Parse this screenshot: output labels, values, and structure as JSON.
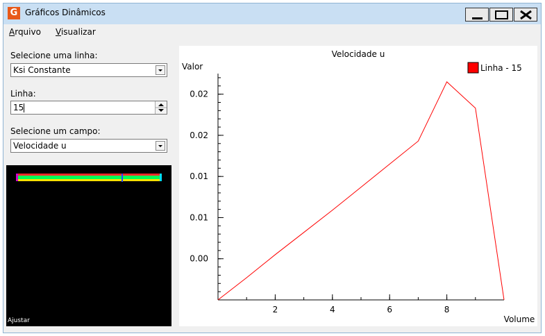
{
  "window": {
    "icon_text": "G",
    "title": "Gráficos Dinâmicos"
  },
  "menu": {
    "items": [
      {
        "label": "Arquivo",
        "mnemonic": "A",
        "rest": "rquivo"
      },
      {
        "label": "Visualizar",
        "mnemonic": "V",
        "rest": "isualizar"
      }
    ]
  },
  "controls": {
    "line_select_label": "Selecione uma linha:",
    "line_select_value": "Ksi Constante",
    "line_label": "Linha:",
    "line_value": "15",
    "field_select_label": "Selecione um campo:",
    "field_select_value": "Velocidade u",
    "preview_label": "Ajustar"
  },
  "colors": {
    "series": "#ff0000",
    "titlebar": "#c9dff3",
    "preview_bg": "#000000"
  },
  "chart_data": {
    "type": "line",
    "title": "Velocidade u",
    "ylabel": "Valor",
    "xlabel": "Volume",
    "legend_position": "top-right",
    "x_ticks": [
      2,
      4,
      6,
      8
    ],
    "y_tick_labels": [
      "0.02",
      "0.02",
      "0.01",
      "0.01",
      "0.00"
    ],
    "y_tick_values": [
      0.02,
      0.015,
      0.01,
      0.005,
      0.0
    ],
    "xlim": [
      0,
      10
    ],
    "ylim": [
      -0.005,
      0.0225
    ],
    "series": [
      {
        "name": "Linha - 15",
        "color": "#ff0000",
        "x": [
          0,
          1,
          2,
          3,
          4,
          5,
          6,
          7,
          8,
          9,
          10
        ],
        "y": [
          -0.005,
          -0.0023,
          0.0005,
          0.0032,
          0.0059,
          0.0087,
          0.0115,
          0.0143,
          0.0215,
          0.0183,
          -0.005
        ]
      }
    ]
  }
}
